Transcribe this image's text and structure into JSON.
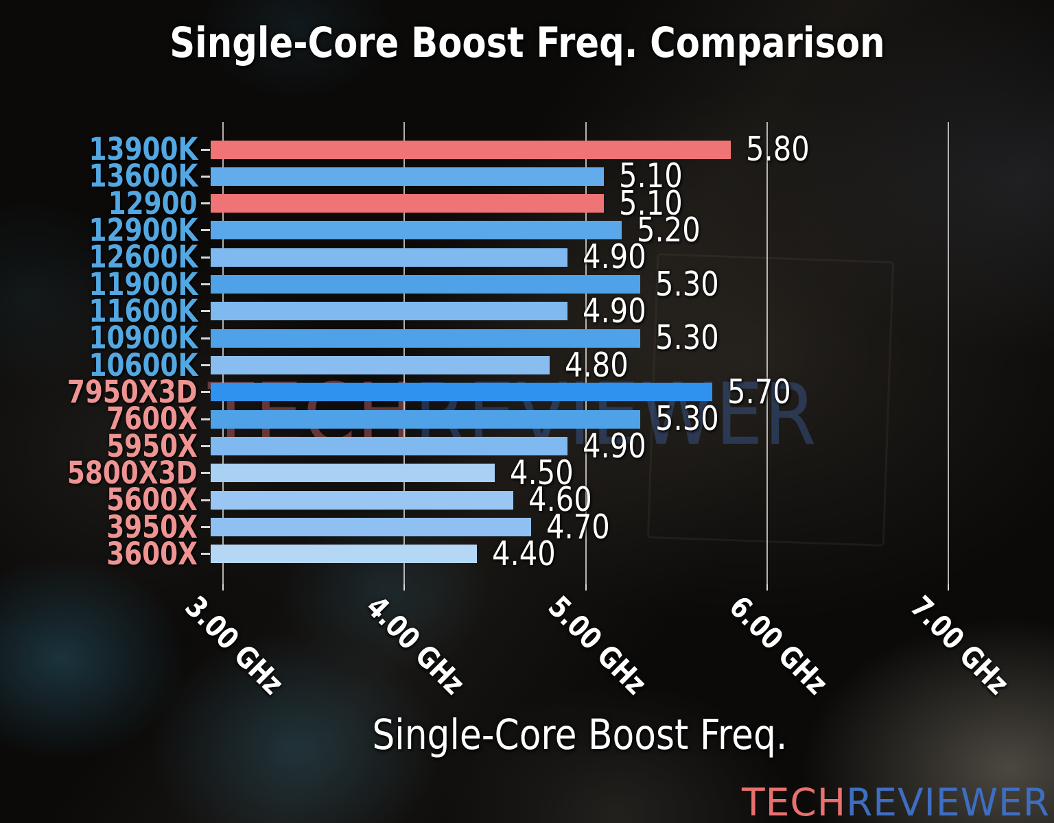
{
  "title": "Single-Core Boost Freq. Comparison",
  "chart_data": {
    "type": "bar",
    "orientation": "horizontal",
    "title": "Single-Core Boost Freq. Comparison",
    "xlabel": "Single-Core Boost Freq.",
    "x_ticks": [
      "3.00 GHz",
      "4.00 GHz",
      "5.00 GHz",
      "6.00 GHz",
      "7.00 GHz"
    ],
    "x_tick_values": [
      3,
      4,
      5,
      6,
      7
    ],
    "xlim": [
      2.93,
      7.25
    ],
    "grid": true,
    "legend": "none",
    "value_label_color": "#ffffff",
    "tick_color": "#d8d8d8",
    "intel_label_color": "#54A8E2",
    "amd_label_color": "#EE9492",
    "highlight_bar_color": "#EE7476",
    "rows": [
      {
        "label": "13900K",
        "value": 5.8,
        "value_label": "5.80",
        "color": "#EE7476",
        "label_color": "#54A8E2"
      },
      {
        "label": "13600K",
        "value": 5.1,
        "value_label": "5.10",
        "color": "#63ACEB",
        "label_color": "#54A8E2"
      },
      {
        "label": "12900",
        "value": 5.1,
        "value_label": "5.10",
        "color": "#EE7476",
        "label_color": "#54A8E2"
      },
      {
        "label": "12900K",
        "value": 5.2,
        "value_label": "5.20",
        "color": "#5AA7EA",
        "label_color": "#54A8E2"
      },
      {
        "label": "12600K",
        "value": 4.9,
        "value_label": "4.90",
        "color": "#7FB9EF",
        "label_color": "#54A8E2"
      },
      {
        "label": "11900K",
        "value": 5.3,
        "value_label": "5.30",
        "color": "#4FA1E8",
        "label_color": "#54A8E2"
      },
      {
        "label": "11600K",
        "value": 4.9,
        "value_label": "4.90",
        "color": "#7FB9EF",
        "label_color": "#54A8E2"
      },
      {
        "label": "10900K",
        "value": 5.3,
        "value_label": "5.30",
        "color": "#4FA1E8",
        "label_color": "#54A8E2"
      },
      {
        "label": "10600K",
        "value": 4.8,
        "value_label": "4.80",
        "color": "#89BDF0",
        "label_color": "#54A8E2"
      },
      {
        "label": "7950X3D",
        "value": 5.7,
        "value_label": "5.70",
        "color": "#2F92EE",
        "label_color": "#EE9492"
      },
      {
        "label": "7600X",
        "value": 5.3,
        "value_label": "5.30",
        "color": "#4FA1E8",
        "label_color": "#EE9492"
      },
      {
        "label": "5950X",
        "value": 4.9,
        "value_label": "4.90",
        "color": "#7FB9EF",
        "label_color": "#EE9492"
      },
      {
        "label": "5800X3D",
        "value": 4.5,
        "value_label": "4.50",
        "color": "#A9D1F4",
        "label_color": "#EE9492"
      },
      {
        "label": "5600X",
        "value": 4.6,
        "value_label": "4.60",
        "color": "#99C6F2",
        "label_color": "#EE9492"
      },
      {
        "label": "3950X",
        "value": 4.7,
        "value_label": "4.70",
        "color": "#90C0F1",
        "label_color": "#EE9492"
      },
      {
        "label": "3600X",
        "value": 4.4,
        "value_label": "4.40",
        "color": "#B5D7F6",
        "label_color": "#EE9492"
      }
    ]
  },
  "watermark": {
    "part1": "TECH",
    "part2": "REVIEWER",
    "color1": "rgba(237,113,115,0.40)",
    "color2": "rgba(70,115,195,0.34)"
  },
  "logo": {
    "part1": "TECH",
    "part2": "REVIEWER",
    "color1": "#E8716F",
    "color2": "#3E6EC1"
  }
}
